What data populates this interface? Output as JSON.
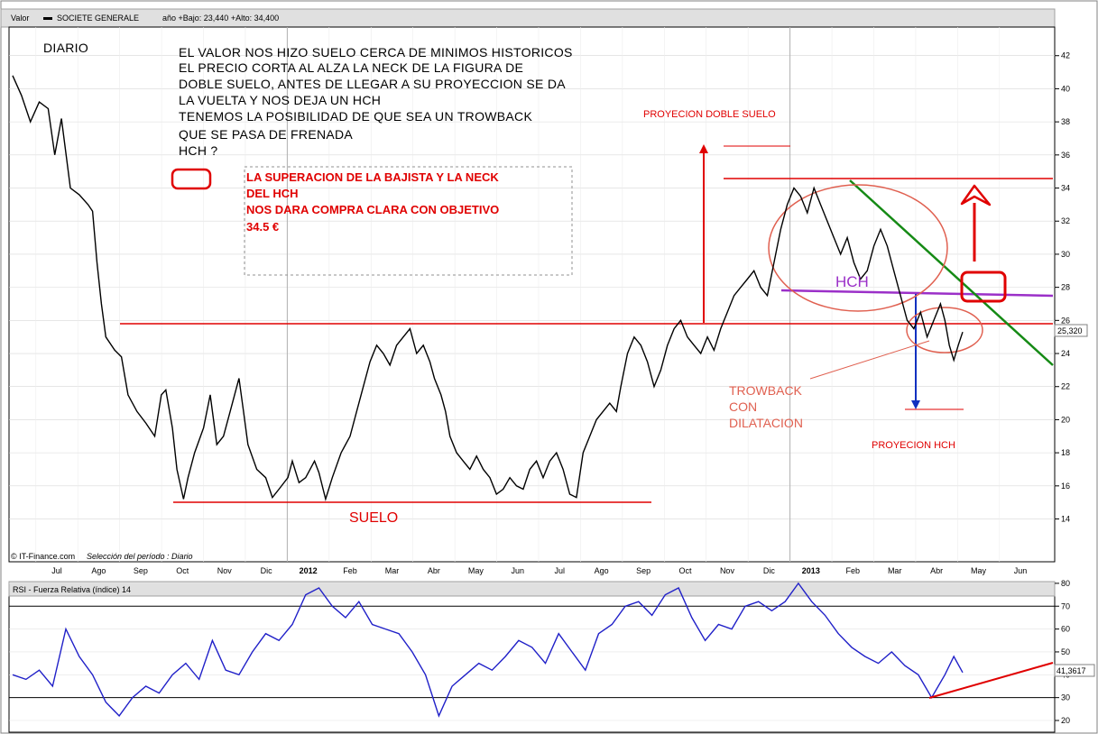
{
  "header": {
    "main_title": "Valor",
    "symbol_name": "SOCIETE GENERALE",
    "range_info": "año +Bajo: 23,440 +Alto: 34,400",
    "footer_source": "© IT-Finance.com",
    "footer_period": "Selección del período : Diario",
    "rsi_title": "RSI - Fuerza Relativa (índice) 14"
  },
  "annotations": {
    "diario": "DIARIO",
    "main_lines": [
      "EL VALOR NOS HIZO SUELO CERCA DE MINIMOS HISTORICOS",
      "EL PRECIO CORTA AL ALZA LA NECK DE LA FIGURA DE",
      "DOBLE SUELO, ANTES DE LLEGAR A SU PROYECCION SE DA",
      "LA VUELTA Y NOS DEJA UN  HCH",
      "TENEMOS LA POSIBILIDAD DE QUE SEA UN TROWBACK",
      "QUE SE PASA DE FRENADA",
      "HCH ?"
    ],
    "box_lines": [
      "LA SUPERACION DE LA BAJISTA Y LA NECK",
      "DEL HCH",
      "NOS DARA COMPRA CLARA CON OBJETIVO",
      "34.5 €"
    ],
    "proyeccion_doble_suelo": "PROYECION DOBLE SUELO",
    "hch": "HCH",
    "trowback_lines": [
      "TROWBACK",
      "CON",
      "DILATACION"
    ],
    "proyeccion_hch": "PROYECION HCH",
    "suelo": "SUELO"
  },
  "chart_data": [
    {
      "type": "line",
      "title": "SOCIETE GENERALE",
      "y_axis_side": "right",
      "ylim": [
        12,
        44
      ],
      "y_ticks": [
        14,
        16,
        18,
        20,
        22,
        24,
        26,
        28,
        30,
        32,
        34,
        36,
        38,
        40,
        42
      ],
      "x_tick_labels": [
        "Jul",
        "Ago",
        "Sep",
        "Oct",
        "Nov",
        "Dic",
        "2012",
        "Feb",
        "Mar",
        "Abr",
        "May",
        "Jun",
        "Jul",
        "Ago",
        "Sep",
        "Oct",
        "Nov",
        "Dic",
        "2013",
        "Feb",
        "Mar",
        "Abr",
        "May",
        "Jun"
      ],
      "bold_x_ticks": [
        "2012",
        "2013"
      ],
      "last_value_label": "25,320",
      "last_value": 25.32,
      "series": [
        {
          "values": [
            [
              0,
              40.8
            ],
            [
              2,
              39.6
            ],
            [
              4,
              38.0
            ],
            [
              6,
              39.2
            ],
            [
              8,
              38.8
            ],
            [
              9.5,
              36.0
            ],
            [
              11,
              38.2
            ],
            [
              13,
              34.0
            ],
            [
              15,
              33.6
            ],
            [
              17,
              33.0
            ],
            [
              18,
              32.6
            ],
            [
              19,
              29.5
            ],
            [
              20,
              27.0
            ],
            [
              21,
              25.0
            ],
            [
              23,
              24.2
            ],
            [
              24.5,
              23.8
            ],
            [
              26,
              21.5
            ],
            [
              28,
              20.5
            ],
            [
              30,
              19.8
            ],
            [
              32,
              19.0
            ],
            [
              33.5,
              21.5
            ],
            [
              34.5,
              21.8
            ],
            [
              36,
              19.5
            ],
            [
              37,
              17.0
            ],
            [
              38.5,
              15.2
            ],
            [
              39.5,
              16.5
            ],
            [
              41,
              18.0
            ],
            [
              43,
              19.5
            ],
            [
              44.5,
              21.5
            ],
            [
              46,
              18.5
            ],
            [
              47.5,
              19.0
            ],
            [
              49,
              20.5
            ],
            [
              51,
              22.5
            ],
            [
              52,
              20.5
            ],
            [
              53,
              18.5
            ],
            [
              55,
              17.0
            ],
            [
              57,
              16.5
            ],
            [
              58.5,
              15.3
            ],
            [
              60,
              15.8
            ],
            [
              62,
              16.5
            ],
            [
              63,
              17.5
            ],
            [
              64.5,
              16.2
            ],
            [
              66,
              16.5
            ],
            [
              68,
              17.5
            ],
            [
              69,
              16.8
            ],
            [
              70.5,
              15.2
            ],
            [
              72,
              16.5
            ],
            [
              74,
              18.0
            ],
            [
              76,
              19.0
            ],
            [
              77.5,
              20.5
            ],
            [
              79,
              22.0
            ],
            [
              80.5,
              23.5
            ],
            [
              82,
              24.5
            ],
            [
              83.5,
              24.0
            ],
            [
              85,
              23.3
            ],
            [
              86.5,
              24.5
            ],
            [
              88,
              25.0
            ],
            [
              89.5,
              25.5
            ],
            [
              91,
              24.0
            ],
            [
              92.5,
              24.5
            ],
            [
              94,
              23.5
            ],
            [
              95,
              22.5
            ],
            [
              96.5,
              21.5
            ],
            [
              97.5,
              20.5
            ],
            [
              98.5,
              19.0
            ],
            [
              100,
              18.0
            ],
            [
              101.5,
              17.5
            ],
            [
              103,
              17.0
            ],
            [
              104.5,
              17.8
            ],
            [
              106,
              17.0
            ],
            [
              107.5,
              16.5
            ],
            [
              109,
              15.5
            ],
            [
              110.5,
              15.8
            ],
            [
              112,
              16.5
            ],
            [
              113.5,
              16.0
            ],
            [
              115,
              15.8
            ],
            [
              116.5,
              17.0
            ],
            [
              118,
              17.5
            ],
            [
              119.5,
              16.5
            ],
            [
              121,
              17.5
            ],
            [
              122.5,
              18.0
            ],
            [
              124,
              17.0
            ],
            [
              125.5,
              15.5
            ],
            [
              127,
              15.3
            ],
            [
              128.5,
              18.0
            ],
            [
              130,
              19.0
            ],
            [
              131.5,
              20.0
            ],
            [
              133,
              20.5
            ],
            [
              134.5,
              21.0
            ],
            [
              136,
              20.5
            ],
            [
              137,
              22.0
            ],
            [
              138.5,
              24.0
            ],
            [
              140,
              25.0
            ],
            [
              141.5,
              24.5
            ],
            [
              143,
              23.5
            ],
            [
              144.5,
              22.0
            ],
            [
              146,
              23.0
            ],
            [
              147.5,
              24.5
            ],
            [
              149,
              25.5
            ],
            [
              150.5,
              26.0
            ],
            [
              152,
              25.0
            ],
            [
              153.5,
              24.5
            ],
            [
              155,
              24.0
            ],
            [
              156.5,
              25.0
            ],
            [
              158,
              24.2
            ],
            [
              159.5,
              25.5
            ],
            [
              161,
              26.5
            ],
            [
              162.5,
              27.5
            ],
            [
              164,
              28.0
            ],
            [
              165.5,
              28.5
            ],
            [
              167,
              29.0
            ],
            [
              168.5,
              28.0
            ],
            [
              170,
              27.5
            ],
            [
              171.5,
              29.5
            ],
            [
              173,
              31.5
            ],
            [
              174.5,
              33.0
            ],
            [
              176,
              34.0
            ],
            [
              177.5,
              33.5
            ],
            [
              179,
              32.5
            ],
            [
              180.5,
              34.0
            ],
            [
              182,
              33.0
            ],
            [
              183.5,
              32.0
            ],
            [
              185,
              31.0
            ],
            [
              186.5,
              30.0
            ],
            [
              188,
              31.0
            ],
            [
              189.5,
              29.5
            ],
            [
              191,
              28.5
            ],
            [
              192.5,
              29.0
            ],
            [
              194,
              30.5
            ],
            [
              195.5,
              31.5
            ],
            [
              197,
              30.5
            ],
            [
              198.5,
              29.0
            ],
            [
              200,
              27.5
            ],
            [
              201.5,
              26.0
            ],
            [
              203,
              25.5
            ],
            [
              204.5,
              26.5
            ],
            [
              206,
              25.0
            ],
            [
              207.5,
              26.0
            ],
            [
              209,
              27.0
            ],
            [
              210,
              26.0
            ],
            [
              211,
              24.5
            ],
            [
              212,
              23.6
            ],
            [
              213,
              24.5
            ],
            [
              214,
              25.3
            ]
          ]
        }
      ]
    },
    {
      "type": "line",
      "title": "RSI - Fuerza Relativa (índice) 14",
      "y_axis_side": "right",
      "ylim": [
        18,
        82
      ],
      "y_ticks": [
        20,
        30,
        40,
        50,
        60,
        70,
        80
      ],
      "reference_lines": [
        30,
        70
      ],
      "last_value_label": "41,3617",
      "last_value": 41.36,
      "series": [
        {
          "values": [
            [
              0,
              40
            ],
            [
              3,
              38
            ],
            [
              6,
              42
            ],
            [
              9,
              35
            ],
            [
              12,
              60
            ],
            [
              15,
              48
            ],
            [
              18,
              40
            ],
            [
              21,
              28
            ],
            [
              24,
              22
            ],
            [
              27,
              30
            ],
            [
              30,
              35
            ],
            [
              33,
              32
            ],
            [
              36,
              40
            ],
            [
              39,
              45
            ],
            [
              42,
              38
            ],
            [
              45,
              55
            ],
            [
              48,
              42
            ],
            [
              51,
              40
            ],
            [
              54,
              50
            ],
            [
              57,
              58
            ],
            [
              60,
              55
            ],
            [
              63,
              62
            ],
            [
              66,
              75
            ],
            [
              69,
              78
            ],
            [
              72,
              70
            ],
            [
              75,
              65
            ],
            [
              78,
              72
            ],
            [
              81,
              62
            ],
            [
              84,
              60
            ],
            [
              87,
              58
            ],
            [
              90,
              50
            ],
            [
              93,
              40
            ],
            [
              96,
              22
            ],
            [
              99,
              35
            ],
            [
              102,
              40
            ],
            [
              105,
              45
            ],
            [
              108,
              42
            ],
            [
              111,
              48
            ],
            [
              114,
              55
            ],
            [
              117,
              52
            ],
            [
              120,
              45
            ],
            [
              123,
              58
            ],
            [
              126,
              50
            ],
            [
              129,
              42
            ],
            [
              132,
              58
            ],
            [
              135,
              62
            ],
            [
              138,
              70
            ],
            [
              141,
              72
            ],
            [
              144,
              66
            ],
            [
              147,
              75
            ],
            [
              150,
              78
            ],
            [
              153,
              65
            ],
            [
              156,
              55
            ],
            [
              159,
              62
            ],
            [
              162,
              60
            ],
            [
              165,
              70
            ],
            [
              168,
              72
            ],
            [
              171,
              68
            ],
            [
              174,
              72
            ],
            [
              177,
              80
            ],
            [
              180,
              72
            ],
            [
              183,
              66
            ],
            [
              186,
              58
            ],
            [
              189,
              52
            ],
            [
              192,
              48
            ],
            [
              195,
              45
            ],
            [
              198,
              50
            ],
            [
              201,
              44
            ],
            [
              204,
              40
            ],
            [
              207,
              30
            ],
            [
              210,
              40
            ],
            [
              212,
              48
            ],
            [
              214,
              41
            ]
          ]
        }
      ]
    }
  ]
}
